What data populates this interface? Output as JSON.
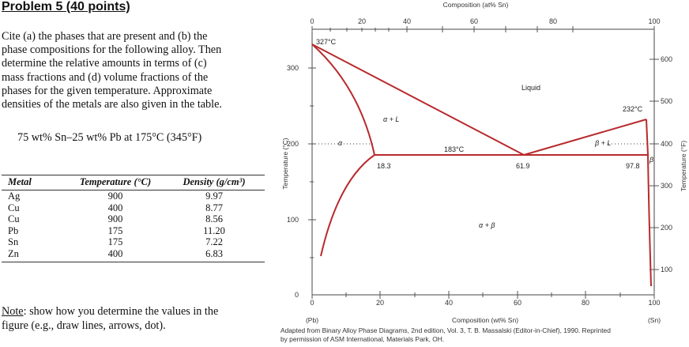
{
  "problem": {
    "title": "Problem 5 (40 points)",
    "paragraph_lines": [
      "Cite (a) the phases that are present and (b) the",
      "phase compositions for the following alloy. Then",
      "determine the relative amounts in terms of (c)",
      "mass fractions and (d) volume fractions of the",
      "phases for the given temperature. Approximate",
      "densities of the metals are also given in the table."
    ],
    "alloy": "75 wt% Sn–25 wt% Pb at 175°C (345°F)",
    "note_label": "Note",
    "note_lines": [
      ": show how you determine the values in the",
      "figure (e.g., draw lines, arrows, dot)."
    ]
  },
  "table": {
    "headers": [
      "Metal",
      "Temperature (°C)",
      "Density (g/cm³)"
    ],
    "rows": [
      [
        "Ag",
        "900",
        "9.97"
      ],
      [
        "Cu",
        "400",
        "8.77"
      ],
      [
        "Cu",
        "900",
        "8.56"
      ],
      [
        "Pb",
        "175",
        "11.20"
      ],
      [
        "Sn",
        "175",
        "7.22"
      ],
      [
        "Zn",
        "400",
        "6.83"
      ]
    ]
  },
  "diagram": {
    "top_axis_title": "Composition (at% Sn)",
    "top_ticks": [
      "0",
      "20",
      "40",
      "60",
      "80",
      "100"
    ],
    "bottom_axis_title": "Composition (wt% Sn)",
    "bottom_ticks": [
      "0",
      "20",
      "40",
      "60",
      "80",
      "100"
    ],
    "bottom_left_label": "(Pb)",
    "bottom_right_label": "(Sn)",
    "left_axis_title": "Temperature (°C)",
    "left_ticks": [
      "0",
      "100",
      "200",
      "300"
    ],
    "right_axis_title": "Temperature (°F)",
    "right_ticks": [
      "100",
      "200",
      "300",
      "400",
      "500",
      "600"
    ],
    "labels": {
      "pb_melt": "327°C",
      "sn_melt": "232°C",
      "liquid": "Liquid",
      "alpha_L": "α + L",
      "beta_L": "β + L",
      "alpha": "α",
      "beta": "β",
      "alpha_beta": "α + β",
      "eutectic_temp": "183°C",
      "alpha_comp": "18.3",
      "eutectic_comp": "61.9",
      "beta_comp": "97.8"
    },
    "caption_lines": [
      "Adapted from Binary Alloy Phase Diagrams, 2nd edition, Vol. 3, T. B. Massalski (Editor-in-Chief), 1990. Reprinted",
      "by permission of ASM International, Materials Park, OH."
    ],
    "curve_color": "#b82a2c"
  }
}
